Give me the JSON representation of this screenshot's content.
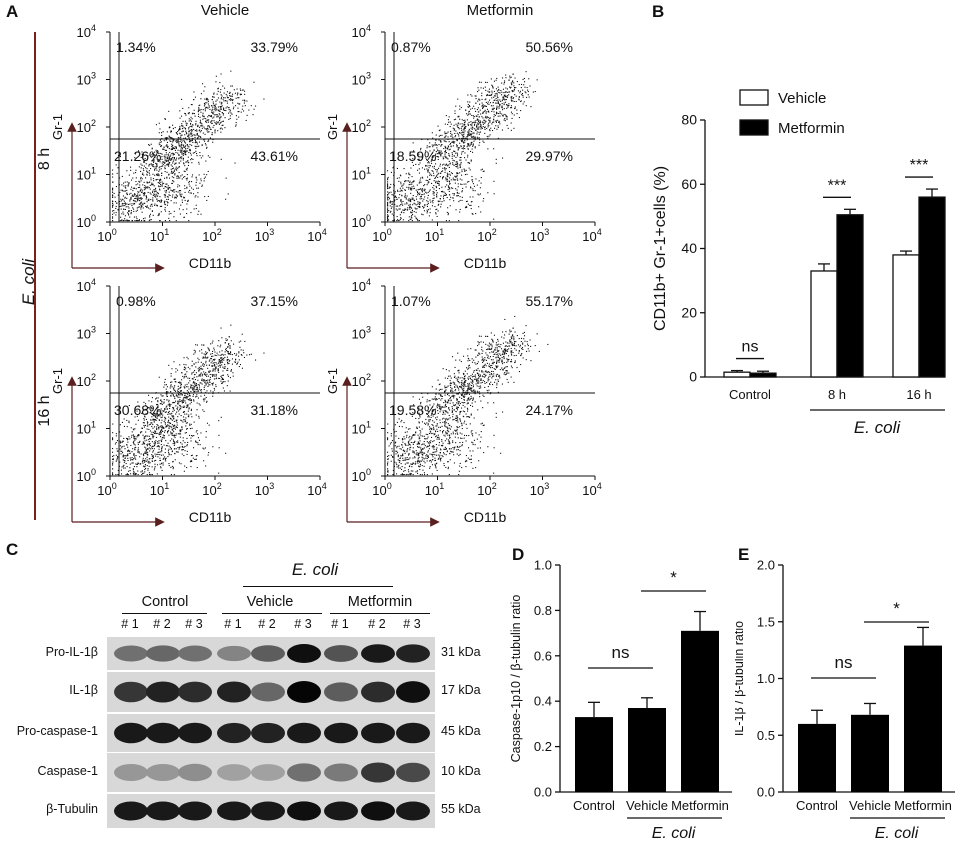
{
  "panels": {
    "A": "A",
    "B": "B",
    "C": "C",
    "D": "D",
    "E": "E"
  },
  "flow": {
    "col_titles": [
      "Vehicle",
      "Metformin"
    ],
    "row_labels": [
      "8 h",
      "16 h"
    ],
    "side_label": "E. coli",
    "x_axis_label": "CD11b",
    "y_axis_label": "Gr-1",
    "tick_labels": [
      "10",
      "10",
      "10",
      "10",
      "10"
    ],
    "tick_exponents": [
      "0",
      "1",
      "2",
      "3",
      "4"
    ],
    "plots": [
      {
        "row": "8 h",
        "col": "Vehicle",
        "ul": "1.34%",
        "ur": "33.79%",
        "ll": "21.26%",
        "lr": "43.61%"
      },
      {
        "row": "8 h",
        "col": "Metformin",
        "ul": "0.87%",
        "ur": "50.56%",
        "ll": "18.59%",
        "lr": "29.97%"
      },
      {
        "row": "16 h",
        "col": "Vehicle",
        "ul": "0.98%",
        "ur": "37.15%",
        "ll": "30.68%",
        "lr": "31.18%"
      },
      {
        "row": "16 h",
        "col": "Metformin",
        "ul": "1.07%",
        "ur": "55.17%",
        "ll": "19.58%",
        "lr": "24.17%"
      }
    ]
  },
  "chart_data": [
    {
      "panel": "B",
      "type": "bar",
      "categories": [
        "Control",
        "8 h",
        "16 h"
      ],
      "group_label": "E. coli",
      "ylabel": "CD11b+ Gr-1+cells (%)",
      "ylim": [
        0,
        80
      ],
      "yticks": [
        "0",
        "20",
        "40",
        "60",
        "80"
      ],
      "legend": [
        "Vehicle",
        "Metformin"
      ],
      "legend_position": "top-right",
      "series": [
        {
          "name": "Vehicle",
          "values": [
            1.5,
            33,
            38
          ],
          "errors": [
            0.5,
            2.2,
            1.2
          ],
          "color": "#ffffff"
        },
        {
          "name": "Metformin",
          "values": [
            1.2,
            50.5,
            56
          ],
          "errors": [
            0.6,
            1.7,
            2.5
          ],
          "color": "#000000"
        }
      ],
      "significance": [
        "ns",
        "***",
        "***"
      ]
    },
    {
      "panel": "D",
      "type": "bar",
      "categories": [
        "Control",
        "Vehicle",
        "Metformin"
      ],
      "group_label": "E. coli",
      "ylabel": "Caspase-1p10 / β-tubulin ratio",
      "ylim": [
        0,
        1.0
      ],
      "yticks": [
        "0.0",
        "0.2",
        "0.4",
        "0.6",
        "0.8",
        "1.0"
      ],
      "values": [
        0.33,
        0.37,
        0.71
      ],
      "errors": [
        0.065,
        0.045,
        0.085
      ],
      "significance": [
        "ns",
        "*"
      ]
    },
    {
      "panel": "E",
      "type": "bar",
      "categories": [
        "Control",
        "Vehicle",
        "Metformin"
      ],
      "group_label": "E. coli",
      "ylabel": "IL-1β / β-tubulin ratio",
      "ylim": [
        0,
        2.0
      ],
      "yticks": [
        "0.0",
        "0.5",
        "1.0",
        "1.5",
        "2.0"
      ],
      "values": [
        0.6,
        0.68,
        1.29
      ],
      "errors": [
        0.12,
        0.1,
        0.16
      ],
      "significance": [
        "ns",
        "*"
      ]
    }
  ],
  "blot": {
    "header_ecoli": "E. coli",
    "groups": [
      "Control",
      "Vehicle",
      "Metformin"
    ],
    "lanes": [
      "# 1",
      "# 2",
      "# 3",
      "# 1",
      "# 2",
      "# 3",
      "# 1",
      "# 2",
      "# 3"
    ],
    "rows": [
      {
        "label": "Pro-IL-1β",
        "kda": "31 kDa"
      },
      {
        "label": "IL-1β",
        "kda": "17 kDa"
      },
      {
        "label": "Pro-caspase-1",
        "kda": "45 kDa"
      },
      {
        "label": "Caspase-1",
        "kda": "10 kDa"
      },
      {
        "label": "β-Tubulin",
        "kda": "55 kDa"
      }
    ]
  }
}
